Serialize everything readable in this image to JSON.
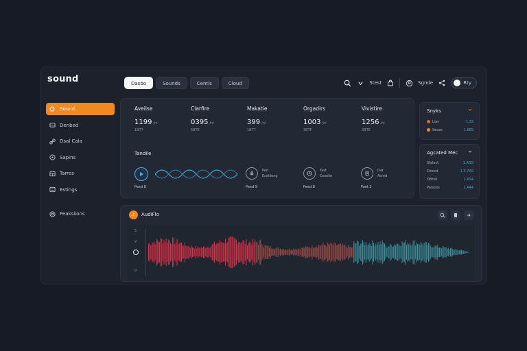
{
  "app": {
    "logo": "sound"
  },
  "tabs": [
    {
      "label": "Dasbo",
      "active": true
    },
    {
      "label": "Sounds",
      "active": false
    },
    {
      "label": "Centis",
      "active": false
    },
    {
      "label": "Cloud",
      "active": false
    }
  ],
  "toolbar": {
    "menu_label": "Stest",
    "user_label": "Sgnde",
    "toggle_label": "Rty"
  },
  "sidebar": {
    "items": [
      {
        "label": "Sound",
        "icon": "sound-icon",
        "active": true
      },
      {
        "label": "Denbed",
        "icon": "dashboard-icon",
        "active": false
      },
      {
        "label": "Dsal Cala",
        "icon": "link-icon",
        "active": false
      },
      {
        "label": "Sapins",
        "icon": "disc-icon",
        "active": false
      },
      {
        "label": "Tarres",
        "icon": "grid-icon",
        "active": false
      },
      {
        "label": "Estings",
        "icon": "list-icon",
        "active": false
      }
    ],
    "bottom_item": {
      "label": "Peaksiions",
      "icon": "settings-icon"
    }
  },
  "stats": [
    {
      "title": "Aveilse",
      "value": "1199",
      "unit": "/ni",
      "sub": "1BT7"
    },
    {
      "title": "Clarfire",
      "value": "0395",
      "unit": "/nl",
      "sub": "5BTE"
    },
    {
      "title": "Makatie",
      "value": "399",
      "unit": "/nl",
      "sub": "1BT7"
    },
    {
      "title": "Orgadirs",
      "value": "1003",
      "unit": "/nl",
      "sub": "3BTF"
    },
    {
      "title": "Vivistire",
      "value": "1256",
      "unit": "/nl",
      "sub": "3BTE"
    }
  ],
  "timeline": {
    "title": "Tandiie",
    "play_label": "Peed 8",
    "items": [
      {
        "label": "Peed 9",
        "text1": "Ped",
        "text2": "Eceliiong"
      },
      {
        "label": "Peed 8",
        "text1": "Tast",
        "text2": "Ceselie"
      },
      {
        "label": "Paet 2",
        "text1": "Dat",
        "text2": "Acred"
      }
    ]
  },
  "right_top": {
    "title": "Snyks",
    "rows": [
      {
        "label": "Lian",
        "value": "1.33",
        "dot": "#e8632c"
      },
      {
        "label": "Seces",
        "value": "1.68S",
        "dot": "#f08a1f"
      }
    ]
  },
  "right_bottom": {
    "title": "Agcated Mec",
    "rows": [
      {
        "label": "Sfalect",
        "value": "1.ASG"
      },
      {
        "label": "Cbeed",
        "value": "1.5.7AS"
      },
      {
        "label": "OBtsd",
        "value": "1.AS4"
      },
      {
        "label": "Penices",
        "value": "1.A44"
      }
    ]
  },
  "audio": {
    "title": "AudiFlo",
    "axis_top": "5",
    "axis_mid": "V",
    "axis_low": "8",
    "axis_bottom": "0",
    "colors": {
      "red": "#d8334a",
      "brown": "#9a4a48",
      "teal": "#3f8e9c"
    }
  },
  "colors": {
    "accent": "#f08a1f",
    "bg": "#161b25",
    "panel": "#232934"
  }
}
